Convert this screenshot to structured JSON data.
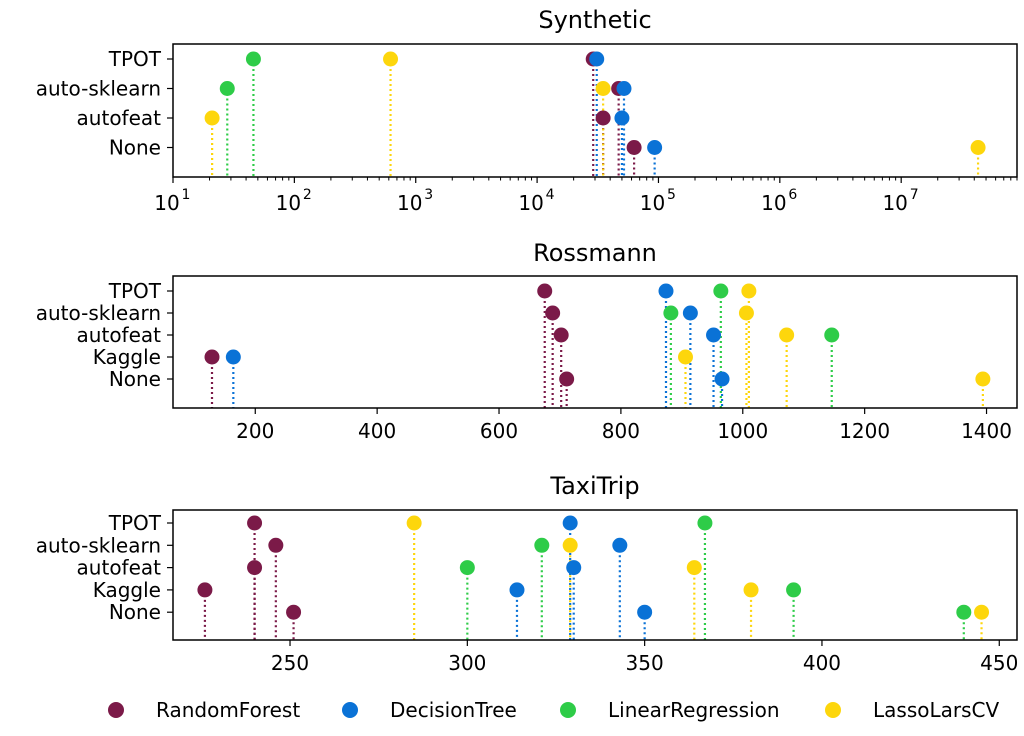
{
  "chart_data": [
    {
      "type": "scatter",
      "title": "Synthetic",
      "xscale": "log",
      "xlim": [
        10,
        90000000
      ],
      "xticks": [
        {
          "value": 10,
          "base": "10",
          "exp": "1"
        },
        {
          "value": 100,
          "base": "10",
          "exp": "2"
        },
        {
          "value": 1000,
          "base": "10",
          "exp": "3"
        },
        {
          "value": 10000,
          "base": "10",
          "exp": "4"
        },
        {
          "value": 100000,
          "base": "10",
          "exp": "5"
        },
        {
          "value": 1000000,
          "base": "10",
          "exp": "6"
        },
        {
          "value": 10000000,
          "base": "10",
          "exp": "7"
        }
      ],
      "categories": [
        "TPOT",
        "auto-sklearn",
        "autofeat",
        "None"
      ],
      "series": [
        {
          "name": "RandomForest",
          "values": [
            29000,
            47000,
            35000,
            63000
          ]
        },
        {
          "name": "DecisionTree",
          "values": [
            31000,
            52000,
            50000,
            93000
          ]
        },
        {
          "name": "LinearRegression",
          "values": [
            46,
            28,
            null,
            null
          ]
        },
        {
          "name": "LassoLarsCV",
          "values": [
            620,
            35000,
            21,
            43000000
          ]
        }
      ]
    },
    {
      "type": "scatter",
      "title": "Rossmann",
      "xscale": "linear",
      "xlim": [
        65,
        1450
      ],
      "xticks": [
        {
          "value": 200,
          "label": "200"
        },
        {
          "value": 400,
          "label": "400"
        },
        {
          "value": 600,
          "label": "600"
        },
        {
          "value": 800,
          "label": "800"
        },
        {
          "value": 1000,
          "label": "1000"
        },
        {
          "value": 1200,
          "label": "1200"
        },
        {
          "value": 1400,
          "label": "1400"
        }
      ],
      "categories": [
        "TPOT",
        "auto-sklearn",
        "autofeat",
        "Kaggle",
        "None"
      ],
      "series": [
        {
          "name": "RandomForest",
          "values": [
            675,
            688,
            702,
            129,
            711
          ]
        },
        {
          "name": "DecisionTree",
          "values": [
            874,
            914,
            952,
            164,
            966
          ]
        },
        {
          "name": "LinearRegression",
          "values": [
            964,
            882,
            1146,
            null,
            null
          ]
        },
        {
          "name": "LassoLarsCV",
          "values": [
            1010,
            1006,
            1072,
            906,
            1394
          ]
        }
      ]
    },
    {
      "type": "scatter",
      "title": "TaxiTrip",
      "xscale": "linear",
      "xlim": [
        217,
        455
      ],
      "xticks": [
        {
          "value": 250,
          "label": "250"
        },
        {
          "value": 300,
          "label": "300"
        },
        {
          "value": 350,
          "label": "350"
        },
        {
          "value": 400,
          "label": "400"
        },
        {
          "value": 450,
          "label": "450"
        }
      ],
      "categories": [
        "TPOT",
        "auto-sklearn",
        "autofeat",
        "Kaggle",
        "None"
      ],
      "series": [
        {
          "name": "RandomForest",
          "values": [
            240,
            246,
            240,
            226,
            251
          ]
        },
        {
          "name": "DecisionTree",
          "values": [
            329,
            343,
            330,
            314,
            350
          ]
        },
        {
          "name": "LinearRegression",
          "values": [
            367,
            321,
            300,
            392,
            440
          ]
        },
        {
          "name": "LassoLarsCV",
          "values": [
            285,
            329,
            364,
            380,
            445
          ]
        }
      ]
    }
  ],
  "legend": {
    "position": "bottom",
    "entries": [
      {
        "name": "RandomForest",
        "color": "#7b1a48"
      },
      {
        "name": "DecisionTree",
        "color": "#0a72d6"
      },
      {
        "name": "LinearRegression",
        "color": "#2ecc48"
      },
      {
        "name": "LassoLarsCV",
        "color": "#fdd60c"
      }
    ]
  }
}
